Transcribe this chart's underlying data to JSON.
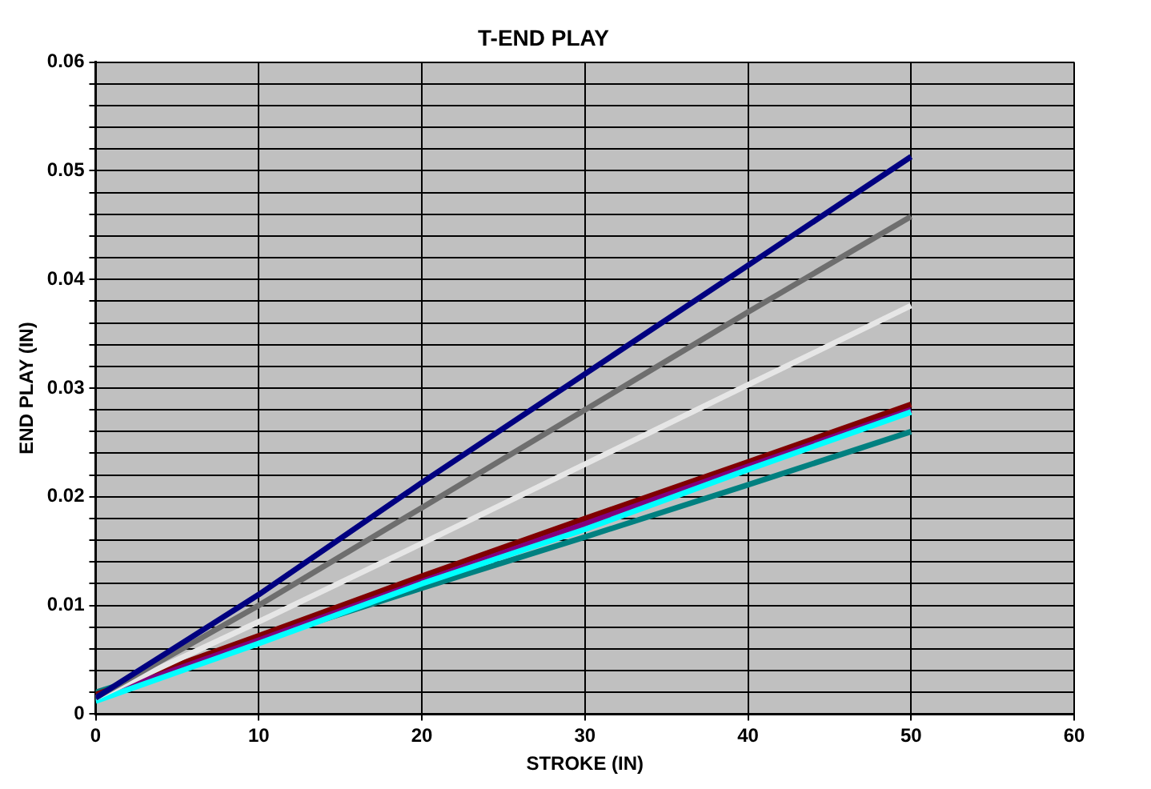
{
  "chart_data": {
    "type": "line",
    "title": "T-END PLAY",
    "xlabel": "STROKE (IN)",
    "ylabel": "END PLAY (IN)",
    "x": [
      0,
      10,
      20,
      30,
      40,
      50
    ],
    "series": [
      {
        "color": "#000080",
        "values": [
          0.0015,
          0.011,
          0.0213,
          0.0313,
          0.0413,
          0.0513
        ]
      },
      {
        "color": "#6e6e6e",
        "values": [
          0.0015,
          0.01,
          0.019,
          0.028,
          0.037,
          0.0458
        ]
      },
      {
        "color": "#e6e6e6",
        "values": [
          0.0015,
          0.0085,
          0.0157,
          0.023,
          0.0303,
          0.0376
        ]
      },
      {
        "color": "#00ffff",
        "values": [
          0.0012,
          0.0065,
          0.012,
          0.017,
          0.0225,
          0.0278
        ]
      },
      {
        "color": "#800080",
        "values": [
          0.0015,
          0.0068,
          0.0122,
          0.0175,
          0.0228,
          0.028
        ]
      },
      {
        "color": "#800000",
        "values": [
          0.0018,
          0.0072,
          0.0127,
          0.018,
          0.0232,
          0.0285
        ]
      },
      {
        "color": "#008080",
        "values": [
          0.002,
          0.0068,
          0.0116,
          0.0163,
          0.0211,
          0.026
        ]
      }
    ],
    "xlim": [
      0,
      60
    ],
    "xticks": [
      0,
      10,
      20,
      30,
      40,
      50,
      60
    ],
    "ylim": [
      0,
      0.06
    ],
    "yticks": [
      0,
      {
        "value": 0.002,
        "label": null
      },
      {
        "value": 0.004,
        "label": null
      },
      {
        "value": 0.006,
        "label": null
      },
      {
        "value": 0.008,
        "label": null
      },
      0.01,
      {
        "value": 0.012,
        "label": null
      },
      {
        "value": 0.014,
        "label": null
      },
      {
        "value": 0.016,
        "label": null
      },
      {
        "value": 0.018,
        "label": null
      },
      0.02,
      {
        "value": 0.022,
        "label": null
      },
      {
        "value": 0.024,
        "label": null
      },
      {
        "value": 0.026,
        "label": null
      },
      {
        "value": 0.028,
        "label": null
      },
      0.03,
      {
        "value": 0.032,
        "label": null
      },
      {
        "value": 0.034,
        "label": null
      },
      {
        "value": 0.036,
        "label": null
      },
      {
        "value": 0.038,
        "label": null
      },
      0.04,
      {
        "value": 0.042,
        "label": null
      },
      {
        "value": 0.044,
        "label": null
      },
      {
        "value": 0.046,
        "label": null
      },
      {
        "value": 0.048,
        "label": null
      },
      0.05,
      {
        "value": 0.052,
        "label": null
      },
      {
        "value": 0.054,
        "label": null
      },
      {
        "value": 0.056,
        "label": null
      },
      {
        "value": 0.058,
        "label": null
      },
      0.06
    ],
    "grid": true,
    "marker": "none",
    "line_style": "solid",
    "legend": false
  }
}
